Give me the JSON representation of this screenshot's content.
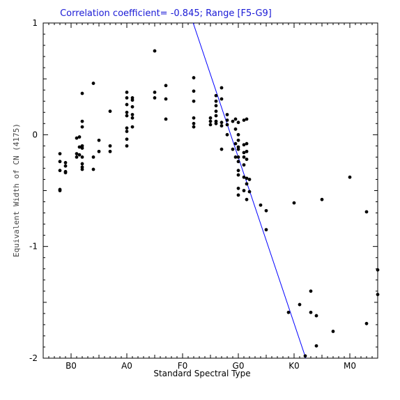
{
  "chart_data": {
    "type": "scatter",
    "title": "Correlation coefficient= -0.845; Range [F5-G9]",
    "xlabel": "Standard Spectral Type",
    "ylabel": "Equivalent Width of CN (4175)",
    "x_ticks": [
      {
        "label": "B0",
        "value": 0
      },
      {
        "label": "A0",
        "value": 10
      },
      {
        "label": "F0",
        "value": 20
      },
      {
        "label": "G0",
        "value": 30
      },
      {
        "label": "K0",
        "value": 40
      },
      {
        "label": "M0",
        "value": 50
      }
    ],
    "y_ticks": [
      {
        "label": "1",
        "value": 1
      },
      {
        "label": "0",
        "value": 0
      },
      {
        "label": "-1",
        "value": -1
      },
      {
        "label": "-2",
        "value": -2
      }
    ],
    "xlim": [
      -5,
      55
    ],
    "ylim": [
      -2,
      1
    ],
    "grid": false,
    "fit_line": {
      "color": "#0000ff",
      "x": [
        21.9,
        42.1
      ],
      "y": [
        1.0,
        -2.0
      ]
    },
    "points": [
      {
        "x": -2,
        "y": -0.17
      },
      {
        "x": -2,
        "y": -0.24
      },
      {
        "x": -2,
        "y": -0.32
      },
      {
        "x": -2,
        "y": -0.49
      },
      {
        "x": -2,
        "y": -0.5
      },
      {
        "x": -1,
        "y": -0.25
      },
      {
        "x": -1,
        "y": -0.28
      },
      {
        "x": -1,
        "y": -0.33
      },
      {
        "x": -1,
        "y": -0.34
      },
      {
        "x": 1,
        "y": -0.03
      },
      {
        "x": 1,
        "y": -0.17
      },
      {
        "x": 1,
        "y": -0.2
      },
      {
        "x": 2,
        "y": 0.37
      },
      {
        "x": 2,
        "y": 0.12
      },
      {
        "x": 2,
        "y": 0.07
      },
      {
        "x": 2,
        "y": -0.1
      },
      {
        "x": 2,
        "y": -0.12
      },
      {
        "x": 2,
        "y": -0.2
      },
      {
        "x": 2,
        "y": -0.26
      },
      {
        "x": 2,
        "y": -0.29
      },
      {
        "x": 2,
        "y": -0.31
      },
      {
        "x": 1.5,
        "y": -0.11
      },
      {
        "x": 1.5,
        "y": -0.18
      },
      {
        "x": 1.5,
        "y": -0.02
      },
      {
        "x": 4,
        "y": 0.46
      },
      {
        "x": 4,
        "y": -0.2
      },
      {
        "x": 4,
        "y": -0.31
      },
      {
        "x": 5,
        "y": -0.05
      },
      {
        "x": 5,
        "y": -0.15
      },
      {
        "x": 7,
        "y": 0.21
      },
      {
        "x": 7,
        "y": -0.1
      },
      {
        "x": 7,
        "y": -0.15
      },
      {
        "x": 10,
        "y": 0.38
      },
      {
        "x": 10,
        "y": 0.33
      },
      {
        "x": 10,
        "y": 0.27
      },
      {
        "x": 10,
        "y": 0.2
      },
      {
        "x": 10,
        "y": 0.17
      },
      {
        "x": 10,
        "y": 0.06
      },
      {
        "x": 10,
        "y": 0.03
      },
      {
        "x": 10,
        "y": -0.04
      },
      {
        "x": 10,
        "y": -0.1
      },
      {
        "x": 11,
        "y": 0.33
      },
      {
        "x": 11,
        "y": 0.31
      },
      {
        "x": 11,
        "y": 0.25
      },
      {
        "x": 11,
        "y": 0.18
      },
      {
        "x": 11,
        "y": 0.15
      },
      {
        "x": 11,
        "y": 0.07
      },
      {
        "x": 15,
        "y": 0.75
      },
      {
        "x": 15,
        "y": 0.38
      },
      {
        "x": 15,
        "y": 0.33
      },
      {
        "x": 17,
        "y": 0.44
      },
      {
        "x": 17,
        "y": 0.32
      },
      {
        "x": 17,
        "y": 0.14
      },
      {
        "x": 22,
        "y": 0.51
      },
      {
        "x": 22,
        "y": 0.39
      },
      {
        "x": 22,
        "y": 0.3
      },
      {
        "x": 22,
        "y": 0.15
      },
      {
        "x": 22,
        "y": 0.1
      },
      {
        "x": 22,
        "y": 0.07
      },
      {
        "x": 25,
        "y": 0.15
      },
      {
        "x": 25,
        "y": 0.12
      },
      {
        "x": 25,
        "y": 0.09
      },
      {
        "x": 26,
        "y": 0.35
      },
      {
        "x": 26,
        "y": 0.3
      },
      {
        "x": 26,
        "y": 0.26
      },
      {
        "x": 26,
        "y": 0.21
      },
      {
        "x": 26,
        "y": 0.17
      },
      {
        "x": 26,
        "y": 0.12
      },
      {
        "x": 26,
        "y": 0.1
      },
      {
        "x": 27,
        "y": 0.42
      },
      {
        "x": 27,
        "y": 0.32
      },
      {
        "x": 27,
        "y": 0.11
      },
      {
        "x": 27,
        "y": 0.08
      },
      {
        "x": 27,
        "y": -0.13
      },
      {
        "x": 28,
        "y": 0.18
      },
      {
        "x": 28,
        "y": 0.13
      },
      {
        "x": 28,
        "y": 0.09
      },
      {
        "x": 28,
        "y": 0.0
      },
      {
        "x": 29,
        "y": 0.12
      },
      {
        "x": 29,
        "y": -0.13
      },
      {
        "x": 29.5,
        "y": 0.14
      },
      {
        "x": 29.5,
        "y": 0.05
      },
      {
        "x": 29.5,
        "y": -0.08
      },
      {
        "x": 29.5,
        "y": -0.2
      },
      {
        "x": 30,
        "y": 0.11
      },
      {
        "x": 30,
        "y": 0.0
      },
      {
        "x": 30,
        "y": -0.05
      },
      {
        "x": 30,
        "y": -0.11
      },
      {
        "x": 30,
        "y": -0.13
      },
      {
        "x": 30,
        "y": -0.2
      },
      {
        "x": 30,
        "y": -0.24
      },
      {
        "x": 30,
        "y": -0.32
      },
      {
        "x": 30,
        "y": -0.36
      },
      {
        "x": 30,
        "y": -0.48
      },
      {
        "x": 30,
        "y": -0.54
      },
      {
        "x": 31,
        "y": 0.13
      },
      {
        "x": 31,
        "y": -0.09
      },
      {
        "x": 31,
        "y": -0.16
      },
      {
        "x": 31,
        "y": -0.2
      },
      {
        "x": 31,
        "y": -0.27
      },
      {
        "x": 31,
        "y": -0.38
      },
      {
        "x": 31,
        "y": -0.5
      },
      {
        "x": 31.5,
        "y": 0.14
      },
      {
        "x": 31.5,
        "y": -0.08
      },
      {
        "x": 31.5,
        "y": -0.15
      },
      {
        "x": 31.5,
        "y": -0.22
      },
      {
        "x": 31.5,
        "y": -0.39
      },
      {
        "x": 31.5,
        "y": -0.44
      },
      {
        "x": 31.5,
        "y": -0.58
      },
      {
        "x": 32,
        "y": -0.4
      },
      {
        "x": 32,
        "y": -0.51
      },
      {
        "x": 34,
        "y": -0.63
      },
      {
        "x": 35,
        "y": -0.68
      },
      {
        "x": 35,
        "y": -0.85
      },
      {
        "x": 39,
        "y": -1.59
      },
      {
        "x": 40,
        "y": -0.61
      },
      {
        "x": 41,
        "y": -1.52
      },
      {
        "x": 42,
        "y": -1.98
      },
      {
        "x": 43,
        "y": -1.4
      },
      {
        "x": 43,
        "y": -1.59
      },
      {
        "x": 44,
        "y": -1.62
      },
      {
        "x": 44,
        "y": -1.89
      },
      {
        "x": 45,
        "y": -0.58
      },
      {
        "x": 47,
        "y": -1.76
      },
      {
        "x": 50,
        "y": -0.38
      },
      {
        "x": 53,
        "y": -0.69
      },
      {
        "x": 53,
        "y": -1.69
      },
      {
        "x": 55,
        "y": -1.21
      },
      {
        "x": 55,
        "y": -1.43
      }
    ]
  }
}
